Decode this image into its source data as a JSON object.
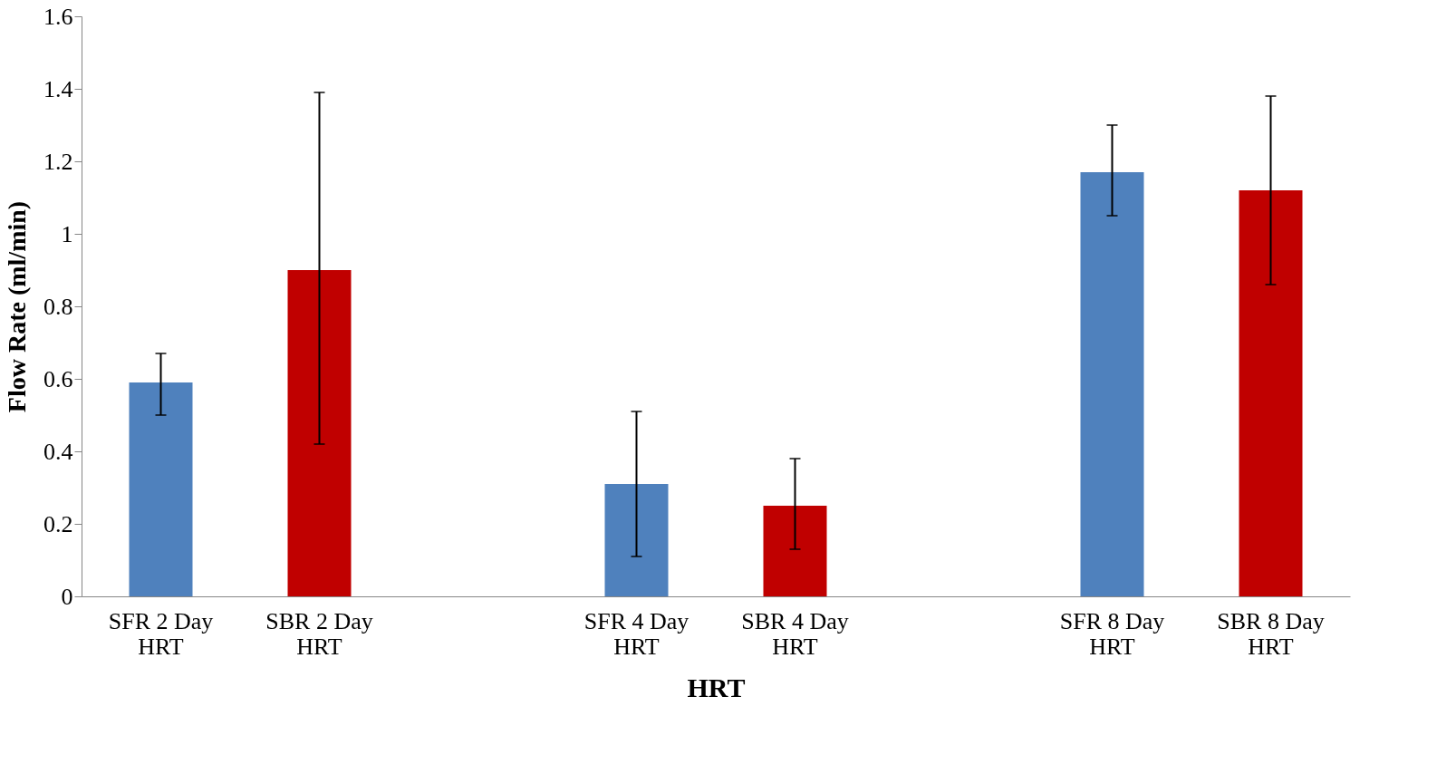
{
  "chart_data": {
    "type": "bar",
    "xlabel": "HRT",
    "ylabel": "Flow Rate (ml/min)",
    "categories": [
      "SFR 2 Day HRT",
      "SBR 2 Day HRT",
      null,
      "SFR 4 Day HRT",
      "SBR 4 Day HRT",
      null,
      "SFR 8 Day HRT",
      "SBR 8 Day HRT"
    ],
    "values": [
      0.59,
      0.9,
      null,
      0.31,
      0.25,
      null,
      1.17,
      1.12
    ],
    "colors": [
      "#4f81bd",
      "#c00000",
      null,
      "#4f81bd",
      "#c00000",
      null,
      "#4f81bd",
      "#c00000"
    ],
    "errors": [
      [
        0.5,
        0.67
      ],
      [
        0.42,
        1.39
      ],
      null,
      [
        0.11,
        0.51
      ],
      [
        0.13,
        0.38
      ],
      null,
      [
        1.05,
        1.3
      ],
      [
        0.86,
        1.38
      ]
    ],
    "ylim": [
      0,
      1.6
    ],
    "yticks": [
      0,
      0.2,
      0.4,
      0.6,
      0.8,
      1,
      1.2,
      1.4,
      1.6
    ],
    "grid": false
  }
}
